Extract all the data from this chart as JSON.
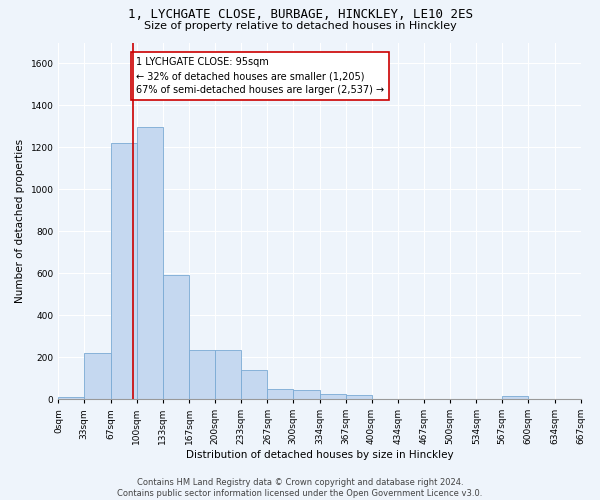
{
  "title": "1, LYCHGATE CLOSE, BURBAGE, HINCKLEY, LE10 2ES",
  "subtitle": "Size of property relative to detached houses in Hinckley",
  "xlabel": "Distribution of detached houses by size in Hinckley",
  "ylabel": "Number of detached properties",
  "bar_color": "#c5d8f0",
  "bar_edge_color": "#7aaad4",
  "background_color": "#eef4fb",
  "grid_color": "#ffffff",
  "annotation_line_color": "#cc0000",
  "annotation_box_text": "1 LYCHGATE CLOSE: 95sqm\n← 32% of detached houses are smaller (1,205)\n67% of semi-detached houses are larger (2,537) →",
  "property_value": 95,
  "bin_edges": [
    0,
    33,
    67,
    100,
    133,
    167,
    200,
    233,
    267,
    300,
    334,
    367,
    400,
    434,
    467,
    500,
    534,
    567,
    600,
    634,
    667
  ],
  "bin_counts": [
    10,
    220,
    1220,
    1295,
    590,
    235,
    235,
    140,
    50,
    45,
    25,
    20,
    0,
    0,
    0,
    0,
    0,
    13,
    0,
    0
  ],
  "tick_labels": [
    "0sqm",
    "33sqm",
    "67sqm",
    "100sqm",
    "133sqm",
    "167sqm",
    "200sqm",
    "233sqm",
    "267sqm",
    "300sqm",
    "334sqm",
    "367sqm",
    "400sqm",
    "434sqm",
    "467sqm",
    "500sqm",
    "534sqm",
    "567sqm",
    "600sqm",
    "634sqm",
    "667sqm"
  ],
  "ylim": [
    0,
    1700
  ],
  "yticks": [
    0,
    200,
    400,
    600,
    800,
    1000,
    1200,
    1400,
    1600
  ],
  "footer_text": "Contains HM Land Registry data © Crown copyright and database right 2024.\nContains public sector information licensed under the Open Government Licence v3.0.",
  "title_fontsize": 9,
  "subtitle_fontsize": 8,
  "footer_fontsize": 6,
  "axis_label_fontsize": 7.5,
  "tick_fontsize": 6.5,
  "annotation_fontsize": 7
}
